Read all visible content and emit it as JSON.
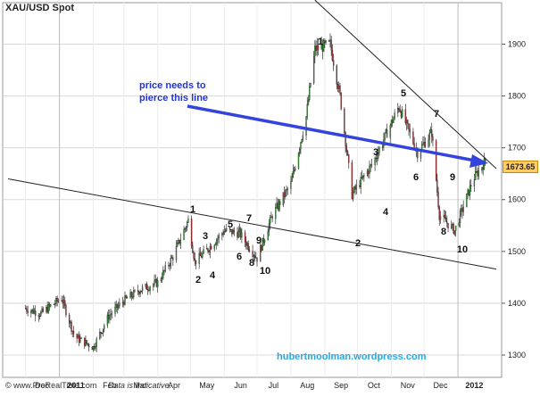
{
  "chart_data": {
    "type": "candlestick",
    "title": "XAU/USD Spot",
    "x_ticks": [
      "Dec",
      "2011",
      "Feb",
      "Mar",
      "Apr",
      "May",
      "Jun",
      "Jul",
      "Aug",
      "Sep",
      "Oct",
      "Nov",
      "Dec",
      "2012"
    ],
    "y_ticks": [
      1300,
      1400,
      1500,
      1600,
      1700,
      1800,
      1900
    ],
    "ylim": [
      1257,
      1980
    ],
    "last_price": "1673.65",
    "series": [
      {
        "name": "XAU/USD Spot",
        "x": [
          "2010-12-01",
          "2010-12-15",
          "2011-01-03",
          "2011-01-15",
          "2011-02-01",
          "2011-02-15",
          "2011-03-01",
          "2011-03-15",
          "2011-04-01",
          "2011-04-15",
          "2011-04-29",
          "2011-05-05",
          "2011-05-15",
          "2011-06-01",
          "2011-06-15",
          "2011-07-01",
          "2011-07-15",
          "2011-08-01",
          "2011-08-15",
          "2011-08-23",
          "2011-09-06",
          "2011-09-15",
          "2011-09-26",
          "2011-10-15",
          "2011-11-08",
          "2011-11-25",
          "2011-12-08",
          "2011-12-15",
          "2011-12-29",
          "2012-01-15",
          "2012-01-26"
        ],
        "y": [
          1390,
          1380,
          1410,
          1335,
          1315,
          1375,
          1405,
          1425,
          1440,
          1490,
          1560,
          1480,
          1500,
          1540,
          1535,
          1487,
          1570,
          1630,
          1760,
          1890,
          1900,
          1800,
          1610,
          1670,
          1780,
          1690,
          1730,
          1570,
          1540,
          1640,
          1674
        ]
      }
    ],
    "trendlines": [
      {
        "name": "upper resistance",
        "points": [
          [
            "2011-08-23",
            1985
          ],
          [
            "2012-02-05",
            1660
          ]
        ]
      },
      {
        "name": "lower trendline",
        "points": [
          [
            "2010-11-15",
            1640
          ],
          [
            "2012-02-05",
            1466
          ]
        ]
      }
    ],
    "wave_labels": [
      "1",
      "2",
      "3",
      "4",
      "5",
      "6",
      "7",
      "8",
      "9",
      "10",
      "1",
      "2",
      "3",
      "4",
      "5",
      "6",
      "7",
      "8",
      "9",
      "10"
    ],
    "annotation": {
      "lines": [
        "price needs to",
        "pierce this line"
      ]
    },
    "grid": true,
    "y_axis_side": "right"
  },
  "footer": {
    "logo": "© www.ProRealTime.com",
    "note": "Data is Indicative."
  },
  "watermark": "hubertmoolman.wordpress.com",
  "colors": {
    "up": "#3a9a3a",
    "down": "#b03030",
    "arrow": "#3344dd",
    "grid": "#d8d8d8",
    "watermark": "#28a9e0",
    "price_tag": "#ffcc66"
  }
}
